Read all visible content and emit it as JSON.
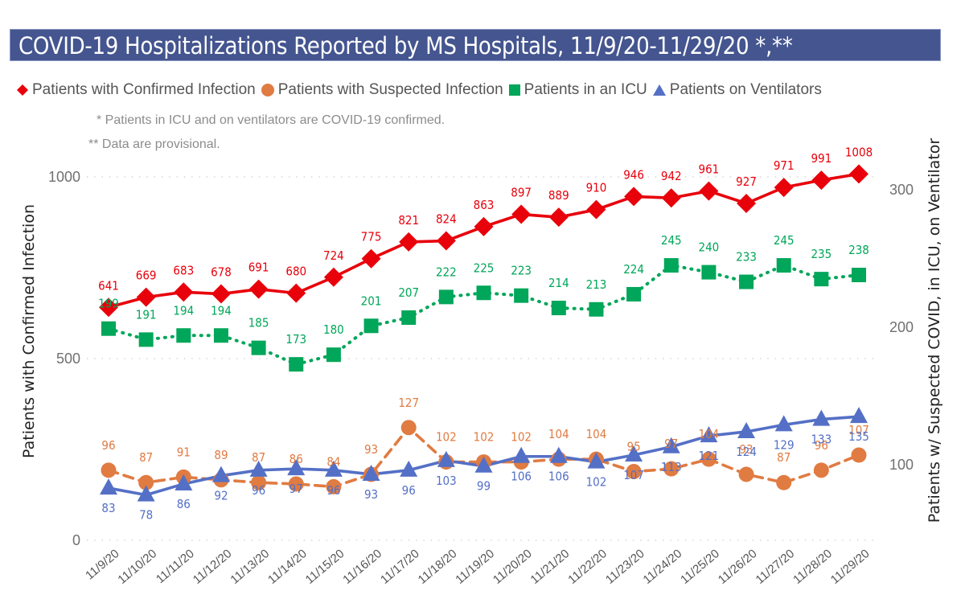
{
  "chart_data": {
    "type": "line",
    "title": "COVID-19 Hospitalizations Reported by MS Hospitals, 11/9/20-11/29/20 *,**",
    "notes": [
      "* Patients in ICU and on ventilators are COVID-19 confirmed.",
      "** Data are provisional."
    ],
    "x": [
      "11/9/20",
      "11/10/20",
      "11/11/20",
      "11/12/20",
      "11/13/20",
      "11/14/20",
      "11/15/20",
      "11/16/20",
      "11/17/20",
      "11/18/20",
      "11/19/20",
      "11/20/20",
      "11/21/20",
      "11/22/20",
      "11/23/20",
      "11/24/20",
      "11/25/20",
      "11/26/20",
      "11/27/20",
      "11/28/20",
      "11/29/20"
    ],
    "y_left": {
      "label": "Patients with Confirmed Infection",
      "ticks": [
        0,
        500,
        1000
      ],
      "range": [
        0,
        1000
      ]
    },
    "y_right": {
      "label": "Patients w/ Suspected COVID, in ICU, on Ventilator",
      "ticks": [
        100,
        200,
        300
      ],
      "range": [
        41,
        305
      ]
    },
    "grid": true,
    "legend_position": "top",
    "series": [
      {
        "name": "Patients with Confirmed Infection",
        "axis": "left",
        "color": "#e8000b",
        "marker": "diamond",
        "line": "solid",
        "values": [
          641,
          669,
          683,
          678,
          691,
          680,
          724,
          775,
          821,
          824,
          863,
          897,
          889,
          910,
          946,
          942,
          961,
          927,
          971,
          991,
          1008
        ]
      },
      {
        "name": "Patients with Suspected Infection",
        "axis": "right",
        "color": "#e07b42",
        "marker": "circle",
        "line": "dashed",
        "values": [
          96,
          87,
          91,
          89,
          87,
          86,
          84,
          93,
          127,
          102,
          102,
          102,
          104,
          104,
          95,
          97,
          104,
          93,
          87,
          96,
          107
        ]
      },
      {
        "name": "Patients in an ICU",
        "axis": "right",
        "color": "#00a659",
        "marker": "square",
        "line": "dotted",
        "values": [
          199,
          191,
          194,
          194,
          185,
          173,
          180,
          201,
          207,
          222,
          225,
          223,
          214,
          213,
          224,
          245,
          240,
          233,
          245,
          235,
          238
        ]
      },
      {
        "name": "Patients on Ventilators",
        "axis": "right",
        "color": "#5470c6",
        "marker": "triangle",
        "line": "solid",
        "values": [
          83,
          78,
          86,
          92,
          96,
          97,
          96,
          93,
          96,
          103,
          99,
          106,
          106,
          102,
          107,
          113,
          121,
          124,
          129,
          133,
          135
        ]
      }
    ]
  },
  "legend_icons": [
    "diamond-icon",
    "circle-icon",
    "square-icon",
    "triangle-icon"
  ]
}
